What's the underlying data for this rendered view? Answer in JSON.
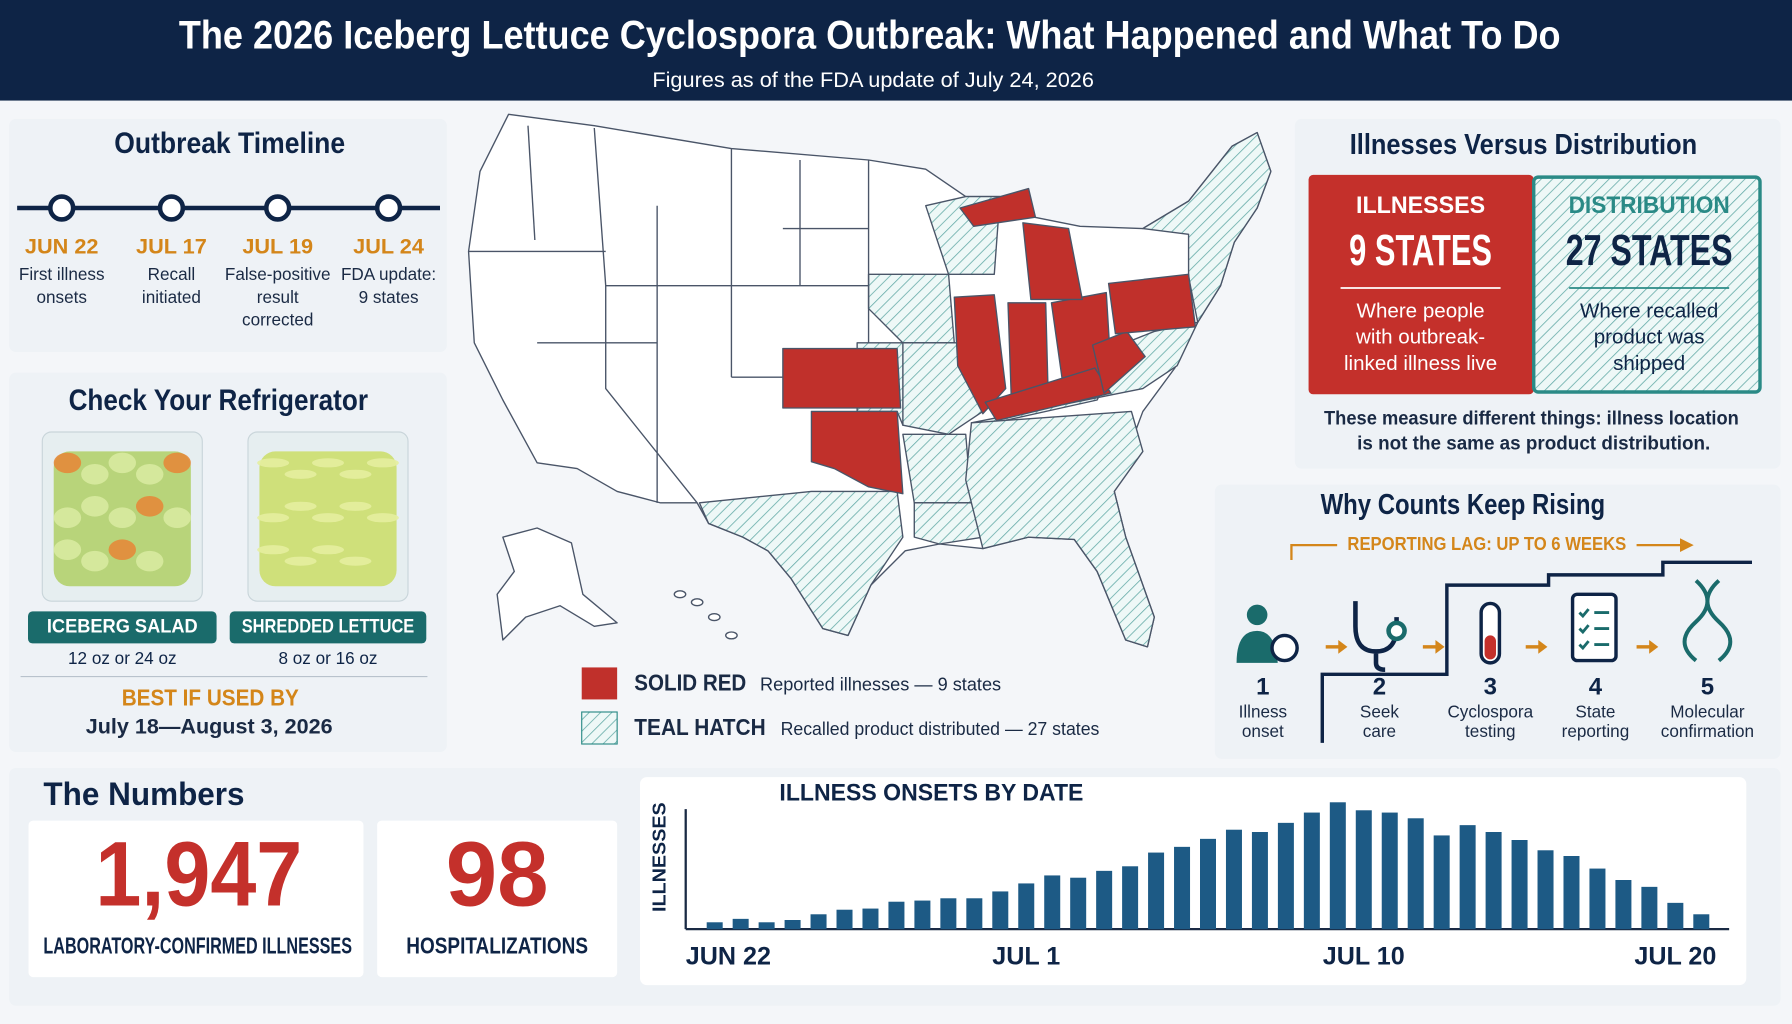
{
  "header": {
    "title": "The 2026 Iceberg Lettuce Cyclospora Outbreak: What Happened and What To Do",
    "subtitle": "Figures as of the FDA update of July 24, 2026"
  },
  "timeline": {
    "title": "Outbreak Timeline",
    "events": [
      {
        "date": "JUN 22",
        "label": [
          "First illness",
          "onsets"
        ]
      },
      {
        "date": "JUL 17",
        "label": [
          "Recall",
          "initiated"
        ]
      },
      {
        "date": "JUL 19",
        "label": [
          "False-positive",
          "result",
          "corrected"
        ]
      },
      {
        "date": "JUL 24",
        "label": [
          "FDA update:",
          "9 states"
        ]
      }
    ]
  },
  "refrigerator": {
    "title": "Check Your Refrigerator",
    "products": [
      {
        "name": "ICEBERG SALAD",
        "sizes": "12 oz or 24 oz"
      },
      {
        "name": "SHREDDED LETTUCE",
        "sizes": "8 oz or 16 oz"
      }
    ],
    "best_if_used_by_label": "BEST IF USED BY",
    "best_if_used_by": "July 18—August 3, 2026"
  },
  "map_legend": [
    {
      "swatch": "SOLID RED",
      "text": "Reported illnesses — 9 states",
      "color": "#c0302b"
    },
    {
      "swatch": "TEAL HATCH",
      "text": "Recalled product distributed — 27 states",
      "color": "#2a8a86"
    }
  ],
  "comparison": {
    "title": "Illnesses Versus Distribution",
    "illnesses": {
      "heading": "ILLNESSES",
      "count": "9 STATES",
      "note": [
        "Where people",
        "with outbreak-",
        "linked illness live"
      ]
    },
    "distribution": {
      "heading": "DISTRIBUTION",
      "count": "27 STATES",
      "note": [
        "Where recalled",
        "product was",
        "shipped"
      ]
    },
    "footnote": [
      "These measure different things: illness location",
      "is not the same as product distribution."
    ]
  },
  "reporting": {
    "title": "Why Counts Keep Rising",
    "lag": "REPORTING LAG: UP TO 6 WEEKS",
    "steps": [
      {
        "number": "1",
        "label": [
          "Illness",
          "onset"
        ]
      },
      {
        "number": "2",
        "label": [
          "Seek",
          "care"
        ]
      },
      {
        "number": "3",
        "label": [
          "Cyclospora",
          "testing"
        ]
      },
      {
        "number": "4",
        "label": [
          "State",
          "reporting"
        ]
      },
      {
        "number": "5",
        "label": [
          "Molecular",
          "confirmation"
        ]
      }
    ]
  },
  "numbers": {
    "title": "The Numbers",
    "stats": [
      {
        "value": "1,947",
        "label": "LABORATORY-CONFIRMED ILLNESSES"
      },
      {
        "value": "98",
        "label": "HOSPITALIZATIONS"
      }
    ]
  },
  "chart_data": {
    "type": "bar",
    "title": "ILLNESS ONSETS BY DATE",
    "y_label": "ILLNESSES",
    "categories": [
      "JUN 22",
      null,
      null,
      null,
      null,
      null,
      null,
      null,
      null,
      null,
      null,
      null,
      "JUL 1",
      null,
      null,
      null,
      null,
      null,
      null,
      null,
      null,
      null,
      null,
      null,
      null,
      "JUL 10",
      null,
      null,
      null,
      null,
      null,
      null,
      null,
      null,
      null,
      null,
      null,
      "JUL 20",
      null
    ],
    "values": [
      6,
      9,
      6,
      8,
      13,
      17,
      18,
      24,
      25,
      27,
      27,
      33,
      40,
      47,
      45,
      51,
      55,
      67,
      72,
      79,
      87,
      85,
      93,
      102,
      111,
      104,
      102,
      97,
      82,
      91,
      85,
      78,
      69,
      64,
      53,
      43,
      37,
      23,
      13
    ],
    "color": "#1d5a85",
    "ylim": [
      0,
      120
    ]
  }
}
